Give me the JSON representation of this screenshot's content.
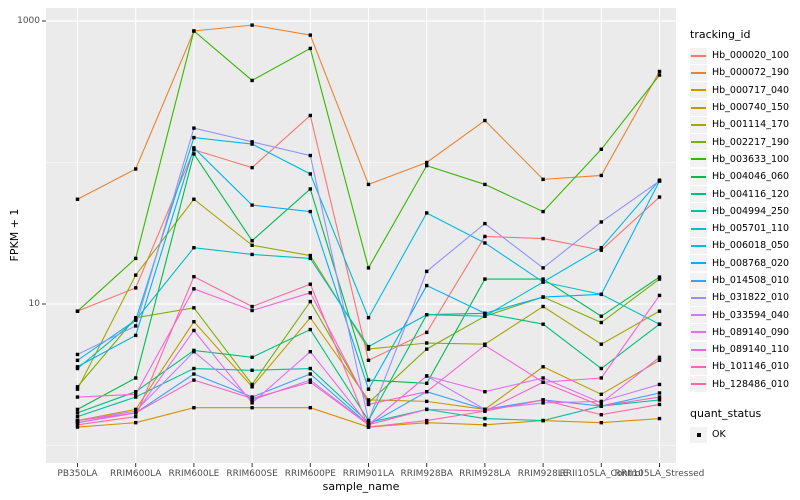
{
  "chart_data": {
    "type": "line",
    "title": "",
    "xlabel": "sample_name",
    "ylabel": "FPKM + 1",
    "y_scale": "log10",
    "y_tick_labels": [
      "1000",
      "10"
    ],
    "y_tick_values": [
      1000,
      10
    ],
    "y_minor_gridlines": [
      100,
      1
    ],
    "ylim": [
      0.8,
      1250
    ],
    "grid": "on",
    "panel_bg": "#EBEBEB",
    "gridline_color": "#FFFFFF",
    "point_color": "#000000",
    "legend_position": "right",
    "categories": [
      "PB350LA",
      "RRIM600LA",
      "RRIM600LE",
      "RRIM600SE",
      "RRIM600PE",
      "RRIM901LA",
      "RRIM928BA",
      "RRIM928LA",
      "RRIM928LE",
      "RRII105LA_Control",
      "RRII105LA_Stressed"
    ],
    "legend": {
      "color_title": "tracking_id",
      "shape_title": "quant_status",
      "shape_items": [
        "OK"
      ]
    },
    "series": [
      {
        "name": "Hb_000020_100",
        "color": "#F8766D",
        "values": [
          8.9,
          13,
          123,
          92,
          215,
          4.0,
          6.3,
          30,
          29,
          24,
          57
        ]
      },
      {
        "name": "Hb_000072_190",
        "color": "#EA8331",
        "values": [
          55,
          90,
          850,
          935,
          795,
          70,
          100,
          198,
          76,
          81,
          440
        ]
      },
      {
        "name": "Hb_000717_040",
        "color": "#D89000",
        "values": [
          1.35,
          1.45,
          1.85,
          1.85,
          1.85,
          1.35,
          1.45,
          1.4,
          1.5,
          1.45,
          1.55
        ]
      },
      {
        "name": "Hb_000740_150",
        "color": "#C09B00",
        "values": [
          1.5,
          1.8,
          7.5,
          2.6,
          8.0,
          2.1,
          2.05,
          1.8,
          3.6,
          2.3,
          4.0
        ]
      },
      {
        "name": "Hb_001114_170",
        "color": "#A3A500",
        "values": [
          2.5,
          16,
          55,
          26,
          22,
          4.8,
          5.3,
          5.2,
          9.6,
          5.2,
          8.9
        ]
      },
      {
        "name": "Hb_002217_190",
        "color": "#7CAE00",
        "values": [
          2.6,
          8.0,
          9.4,
          2.7,
          10.4,
          2.0,
          4.8,
          8.2,
          11.2,
          7.4,
          15
        ]
      },
      {
        "name": "Hb_003633_100",
        "color": "#39B600",
        "values": [
          8.9,
          21,
          850,
          380,
          640,
          18,
          95,
          70,
          45,
          124,
          415
        ]
      },
      {
        "name": "Hb_004046_060",
        "color": "#00BB4E",
        "values": [
          1.8,
          3.0,
          115,
          28,
          65,
          2.9,
          2.75,
          15,
          15,
          8.2,
          15.5
        ]
      },
      {
        "name": "Hb_004116_120",
        "color": "#00BF7D",
        "values": [
          1.7,
          2.4,
          4.7,
          4.2,
          6.6,
          1.5,
          8.4,
          8.6,
          7.2,
          3.5,
          7.2
        ]
      },
      {
        "name": "Hb_004994_250",
        "color": "#00C1A3",
        "values": [
          1.6,
          2.2,
          3.5,
          3.4,
          3.5,
          1.45,
          1.8,
          1.55,
          1.5,
          1.9,
          2.1
        ]
      },
      {
        "name": "Hb_005701_110",
        "color": "#00BFC4",
        "values": [
          3.5,
          7.7,
          25,
          22.4,
          21,
          5.0,
          8.4,
          8.2,
          14.3,
          11.7,
          7.2
        ]
      },
      {
        "name": "Hb_006018_050",
        "color": "#00BAE0",
        "values": [
          4.0,
          7.7,
          150,
          135,
          83,
          8.0,
          44,
          27,
          14.3,
          25,
          75
        ]
      },
      {
        "name": "Hb_008768_020",
        "color": "#00B0F6",
        "values": [
          3.6,
          6.0,
          127,
          50,
          45,
          2.5,
          13.5,
          8.6,
          11.2,
          11.7,
          74
        ]
      },
      {
        "name": "Hb_014508_010",
        "color": "#35A2FF",
        "values": [
          1.45,
          1.7,
          3.2,
          2.2,
          3.2,
          1.4,
          2.4,
          1.8,
          2.1,
          1.9,
          2.35
        ]
      },
      {
        "name": "Hb_031822_010",
        "color": "#9590FF",
        "values": [
          4.4,
          7.0,
          175,
          140,
          112,
          1.5,
          17,
          37,
          18,
          38,
          74
        ]
      },
      {
        "name": "Hb_033594_040",
        "color": "#C77CFF",
        "values": [
          1.5,
          1.75,
          4.6,
          2.1,
          2.9,
          1.4,
          3.1,
          1.8,
          2.0,
          2.05,
          2.7
        ]
      },
      {
        "name": "Hb_089140_090",
        "color": "#E76BF3",
        "values": [
          1.45,
          1.7,
          6.5,
          2.0,
          4.6,
          1.4,
          3.1,
          2.4,
          3.0,
          2.0,
          4.2
        ]
      },
      {
        "name": "Hb_089140_110",
        "color": "#FA62DB",
        "values": [
          2.2,
          2.3,
          12.8,
          9.0,
          12,
          1.95,
          2.4,
          5.1,
          2.8,
          3.0,
          11.5
        ]
      },
      {
        "name": "Hb_101146_010",
        "color": "#FF61C3",
        "values": [
          1.5,
          1.7,
          2.9,
          2.15,
          2.8,
          1.4,
          1.8,
          1.75,
          2.8,
          1.9,
          2.2
        ]
      },
      {
        "name": "Hb_128486_010",
        "color": "#FF67A4",
        "values": [
          1.4,
          1.6,
          15.6,
          9.6,
          13.8,
          1.35,
          1.5,
          1.75,
          2.1,
          1.65,
          1.95
        ]
      }
    ]
  }
}
